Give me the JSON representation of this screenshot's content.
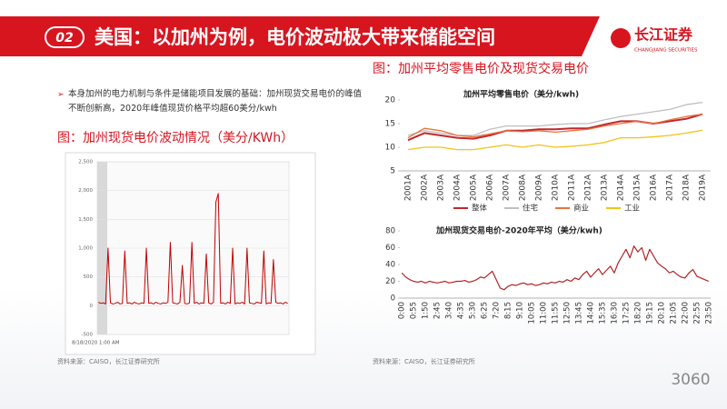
{
  "header": {
    "badge": "02",
    "title": "美国：以加州为例，电价波动极大带来储能空间",
    "logo": "长江证券",
    "logo_sub": "CHANGJIANG SECURITIES"
  },
  "bullet": "本身加州的电力机制与条件是储能项目发展的基础：加州现货交易电价的峰值不断创新高，2020年峰值现货价格平均超60美分/kwh",
  "left_caption": "图：加州现货电价波动情况（美分/KWh）",
  "right_caption": "图：加州平均零售电价及现货交易电价",
  "sources": [
    "资料来源：CAISO，长江证券研究所",
    "资料来源：CAISO，长江证券研究所"
  ],
  "watermark": "3060",
  "chart_data": [
    {
      "type": "line",
      "x_label": "8/18/2020 1:00 AM",
      "color": "#c00000",
      "grid": true,
      "values": [
        60,
        40,
        50,
        30,
        1000,
        50,
        30,
        40,
        60,
        30,
        40,
        950,
        40,
        50,
        30,
        60,
        40,
        30,
        50,
        40,
        1000,
        40,
        50,
        30,
        60,
        40,
        30,
        50,
        40,
        60,
        1100,
        50,
        40,
        30,
        60,
        700,
        40,
        30,
        50,
        1100,
        40,
        60,
        30,
        50,
        40,
        900,
        50,
        30,
        60,
        1800,
        1950,
        40,
        50,
        30,
        60,
        40,
        1000,
        30,
        50,
        40,
        60,
        30,
        1000,
        50,
        40,
        30,
        60,
        50,
        40,
        950,
        30,
        50,
        40,
        800,
        60,
        40,
        50,
        30,
        60,
        40
      ],
      "ylim": [
        -500,
        2500
      ],
      "yticks": [
        {
          "value": -500,
          "label": "-500"
        },
        0,
        500,
        {
          "value": 1000,
          "label": "1,000"
        },
        {
          "value": 1500,
          "label": "1,500"
        },
        {
          "value": 2000,
          "label": "2,000"
        },
        {
          "value": 2500,
          "label": "2,500"
        }
      ]
    },
    {
      "type": "line",
      "title": "加州平均零售电价（美分/kwh)",
      "legend": "bottom",
      "categories": [
        "2001A",
        "2002A",
        "2003A",
        "2004A",
        "2005A",
        "2006A",
        "2007A",
        "2008A",
        "2009A",
        "2010A",
        "2011A",
        "2012A",
        "2013A",
        "2014A",
        "2015A",
        "2016A",
        "2017A",
        "2018A",
        "2019A"
      ],
      "series": [
        {
          "name": "整体",
          "color": "#c0282d",
          "values": [
            11.5,
            13,
            12.5,
            12,
            11.8,
            12.5,
            13.5,
            13.5,
            13.8,
            13.8,
            14,
            14,
            14.8,
            15.5,
            15.5,
            15,
            15.5,
            16,
            17
          ]
        },
        {
          "name": "住宅",
          "color": "#bfbfbf",
          "values": [
            12.5,
            13.5,
            13,
            12.5,
            12.5,
            13.8,
            14.5,
            14.5,
            14.5,
            14.8,
            15,
            15,
            15.8,
            16.5,
            17,
            17.5,
            18,
            19,
            19.5
          ]
        },
        {
          "name": "商业",
          "color": "#e8743b",
          "values": [
            12,
            14,
            13.5,
            12.5,
            12.2,
            12.8,
            13.5,
            13.3,
            13.5,
            13.2,
            13.5,
            13.8,
            14.5,
            15,
            15.5,
            15,
            15.8,
            16.5,
            17
          ]
        },
        {
          "name": "工业",
          "color": "#f2c318",
          "values": [
            9.5,
            10,
            10,
            9.5,
            9.5,
            10,
            10.5,
            10,
            10.5,
            10,
            10.2,
            10.5,
            11,
            12,
            12,
            12.2,
            12.5,
            13,
            13.6
          ]
        }
      ],
      "ylim": [
        5,
        20
      ],
      "yticks": [
        5,
        10,
        15,
        20
      ]
    },
    {
      "type": "line",
      "title": "加州现货交易电价-2020年平均（美分/kwh)",
      "color": "#b22222",
      "categories": [
        "0:00",
        null,
        null,
        "0:55",
        null,
        null,
        "1:50",
        null,
        null,
        "2:45",
        null,
        null,
        "3:40",
        null,
        null,
        "4:35",
        null,
        null,
        "5:30",
        null,
        null,
        "6:25",
        null,
        null,
        "7:20",
        null,
        null,
        "8:15",
        null,
        null,
        "9:10",
        null,
        null,
        "10:05",
        null,
        null,
        "11:00",
        null,
        null,
        "11:55",
        null,
        null,
        "12:50",
        null,
        null,
        "13:45",
        null,
        null,
        "14:40",
        null,
        null,
        "15:35",
        null,
        null,
        "16:30",
        null,
        null,
        "17:25",
        null,
        null,
        "18:20",
        null,
        null,
        "19:15",
        null,
        null,
        "20:10",
        null,
        null,
        "21:05",
        null,
        null,
        "22:00",
        null,
        null,
        "22:55",
        null,
        null,
        "23:50"
      ],
      "values": [
        30,
        25,
        22,
        20,
        19,
        20,
        18,
        20,
        19,
        18,
        19,
        20,
        18,
        19,
        20,
        20,
        21,
        19,
        20,
        22,
        25,
        24,
        28,
        32,
        22,
        12,
        10,
        14,
        16,
        15,
        17,
        18,
        16,
        17,
        15,
        16,
        18,
        17,
        19,
        18,
        20,
        19,
        22,
        20,
        24,
        22,
        28,
        32,
        25,
        30,
        35,
        28,
        33,
        38,
        30,
        42,
        50,
        58,
        48,
        62,
        55,
        60,
        45,
        58,
        50,
        42,
        38,
        35,
        30,
        32,
        28,
        25,
        24,
        30,
        34,
        26,
        24,
        22,
        20
      ],
      "ylim": [
        0,
        80
      ],
      "yticks": [
        0,
        20,
        40,
        60,
        80
      ]
    }
  ]
}
